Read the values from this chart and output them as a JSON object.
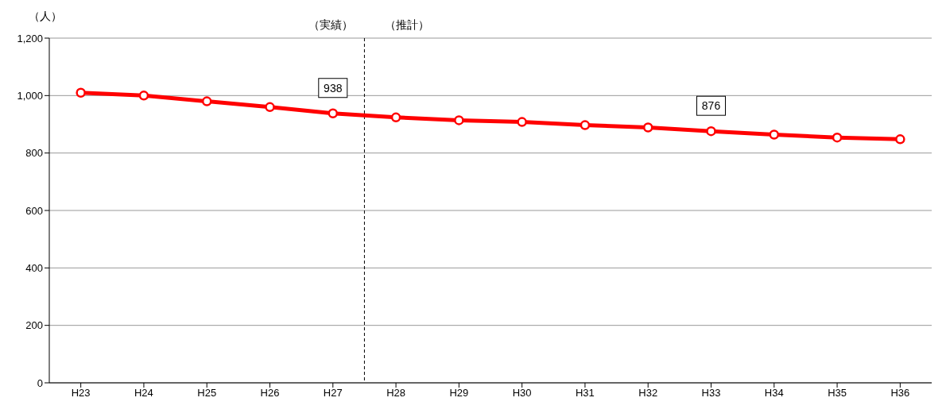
{
  "chart_data": {
    "type": "line",
    "ylabel": "（人）",
    "categories": [
      "H23",
      "H24",
      "H25",
      "H26",
      "H27",
      "H28",
      "H29",
      "H30",
      "H31",
      "H32",
      "H33",
      "H34",
      "H35",
      "H36"
    ],
    "series": [
      {
        "color": "#ff0000",
        "values": [
          1010,
          1000,
          980,
          960,
          938,
          924,
          914,
          908,
          897,
          889,
          876,
          864,
          854,
          848
        ],
        "value_labels": [
          null,
          null,
          null,
          null,
          "938",
          null,
          null,
          null,
          null,
          null,
          "876",
          null,
          null,
          null
        ]
      }
    ],
    "ylim": [
      0,
      1200
    ],
    "yticks": [
      0,
      200,
      400,
      600,
      800,
      {
        "value": 1000,
        "label": "1,000"
      },
      {
        "value": 1200,
        "label": "1,200"
      }
    ],
    "grid": "y",
    "legend": false,
    "marker": "circle",
    "line_style": "solid",
    "ref_lines": [
      {
        "axis": "x",
        "value": "H27",
        "color": "#000000",
        "line_style": "dashed"
      }
    ],
    "annotations": [
      "（実績）",
      "（推計）"
    ]
  }
}
